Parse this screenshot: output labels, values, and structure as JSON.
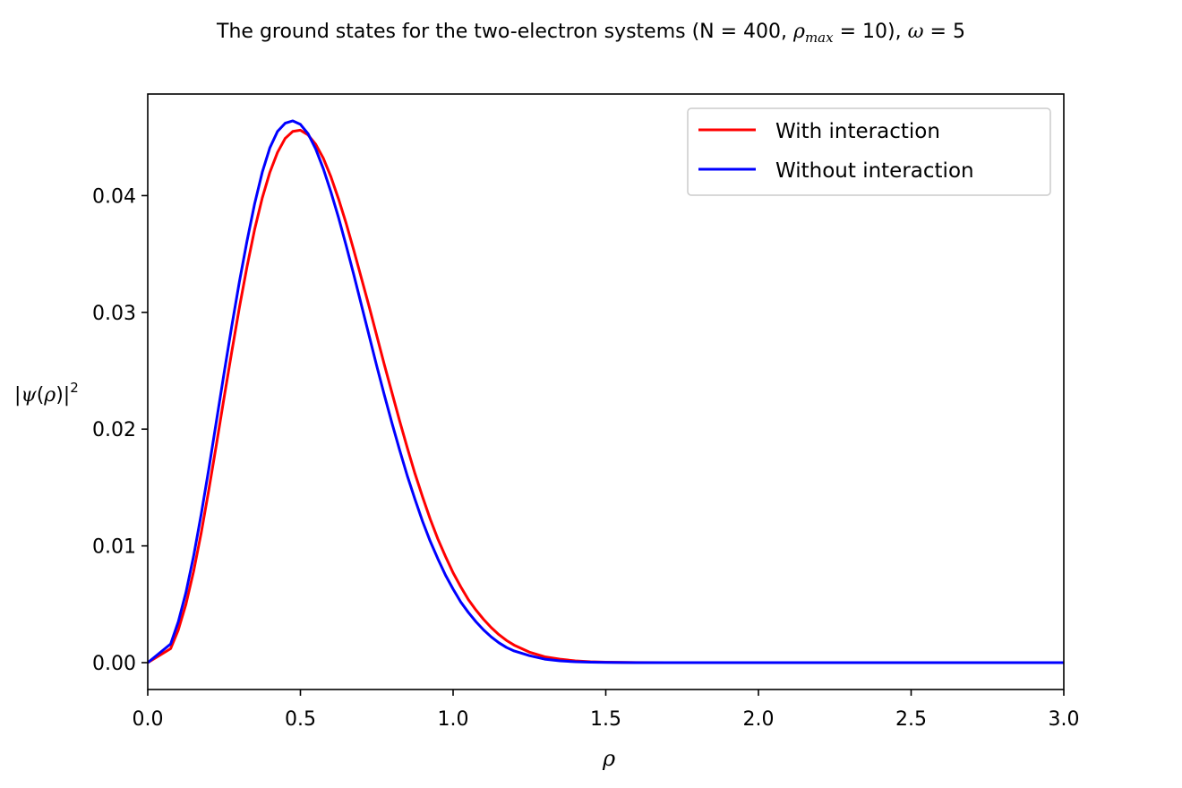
{
  "chart_data": {
    "type": "line",
    "title": {
      "prefix": "The ground states for the two-electron systems (N = 400, ",
      "rho": "ρ",
      "rho_sub": "max",
      "middle": " = 10), ",
      "omega": "ω",
      "suffix": " = 5"
    },
    "xlabel": "ρ",
    "ylabel": {
      "open": "|",
      "psi": "ψ",
      "paren_open": "(",
      "rho": "ρ",
      "paren_close": ")|",
      "sup": "2"
    },
    "xlim": [
      0.0,
      3.0
    ],
    "ylim": [
      -0.0023,
      0.0487
    ],
    "xticks": [
      0.0,
      0.5,
      1.0,
      1.5,
      2.0,
      2.5,
      3.0
    ],
    "xtick_labels": [
      "0.0",
      "0.5",
      "1.0",
      "1.5",
      "2.0",
      "2.5",
      "3.0"
    ],
    "yticks": [
      0.0,
      0.01,
      0.02,
      0.03,
      0.04
    ],
    "ytick_labels": [
      "0.00",
      "0.01",
      "0.02",
      "0.03",
      "0.04"
    ],
    "grid": false,
    "legend_position": "upper right",
    "series": [
      {
        "name": "With interaction",
        "color": "#ff0000",
        "x": [
          0.0,
          0.075,
          0.1,
          0.125,
          0.15,
          0.175,
          0.2,
          0.225,
          0.25,
          0.275,
          0.3,
          0.325,
          0.35,
          0.375,
          0.4,
          0.425,
          0.45,
          0.475,
          0.5,
          0.525,
          0.55,
          0.575,
          0.6,
          0.625,
          0.65,
          0.675,
          0.7,
          0.725,
          0.75,
          0.775,
          0.8,
          0.825,
          0.85,
          0.875,
          0.9,
          0.925,
          0.95,
          0.975,
          1.0,
          1.025,
          1.05,
          1.075,
          1.1,
          1.125,
          1.15,
          1.175,
          1.2,
          1.25,
          1.3,
          1.35,
          1.4,
          1.45,
          1.5,
          1.6,
          1.7,
          1.8,
          2.0,
          2.5,
          3.0
        ],
        "y": [
          0.0,
          0.0012,
          0.0028,
          0.005,
          0.0078,
          0.0111,
          0.0148,
          0.0187,
          0.0227,
          0.0266,
          0.0304,
          0.0339,
          0.0371,
          0.0398,
          0.042,
          0.0437,
          0.0449,
          0.0455,
          0.0456,
          0.0452,
          0.0444,
          0.0432,
          0.0416,
          0.0397,
          0.0376,
          0.0353,
          0.0329,
          0.0305,
          0.028,
          0.0255,
          0.0231,
          0.0207,
          0.0184,
          0.0162,
          0.0142,
          0.0123,
          0.0106,
          0.0091,
          0.0077,
          0.0065,
          0.0054,
          0.0045,
          0.0037,
          0.003,
          0.0024,
          0.0019,
          0.0015,
          0.0009,
          0.0005,
          0.0003,
          0.00015,
          8e-05,
          4e-05,
          1e-05,
          0.0,
          0.0,
          0.0,
          0.0,
          0.0
        ]
      },
      {
        "name": "Without interaction",
        "color": "#0000ff",
        "x": [
          0.0,
          0.075,
          0.1,
          0.125,
          0.15,
          0.175,
          0.2,
          0.225,
          0.25,
          0.275,
          0.3,
          0.325,
          0.35,
          0.375,
          0.4,
          0.425,
          0.45,
          0.475,
          0.5,
          0.525,
          0.55,
          0.575,
          0.6,
          0.625,
          0.65,
          0.675,
          0.7,
          0.725,
          0.75,
          0.775,
          0.8,
          0.825,
          0.85,
          0.875,
          0.9,
          0.925,
          0.95,
          0.975,
          1.0,
          1.025,
          1.05,
          1.075,
          1.1,
          1.125,
          1.15,
          1.175,
          1.2,
          1.25,
          1.3,
          1.35,
          1.4,
          1.45,
          1.5,
          1.6,
          1.7,
          1.8,
          2.0,
          2.5,
          3.0
        ],
        "y": [
          0.0,
          0.0016,
          0.0035,
          0.006,
          0.0091,
          0.0127,
          0.0166,
          0.0207,
          0.0248,
          0.0288,
          0.0326,
          0.0361,
          0.0393,
          0.042,
          0.0441,
          0.0455,
          0.0462,
          0.0464,
          0.0461,
          0.0453,
          0.044,
          0.0423,
          0.0403,
          0.0381,
          0.0357,
          0.0332,
          0.0306,
          0.028,
          0.0254,
          0.0229,
          0.0205,
          0.0182,
          0.016,
          0.014,
          0.0121,
          0.0104,
          0.0089,
          0.0075,
          0.0063,
          0.0052,
          0.0043,
          0.0035,
          0.0028,
          0.0022,
          0.0017,
          0.0013,
          0.001,
          0.0006,
          0.0003,
          0.00015,
          8e-05,
          4e-05,
          2e-05,
          0.0,
          0.0,
          0.0,
          0.0,
          0.0,
          0.0
        ]
      }
    ]
  }
}
